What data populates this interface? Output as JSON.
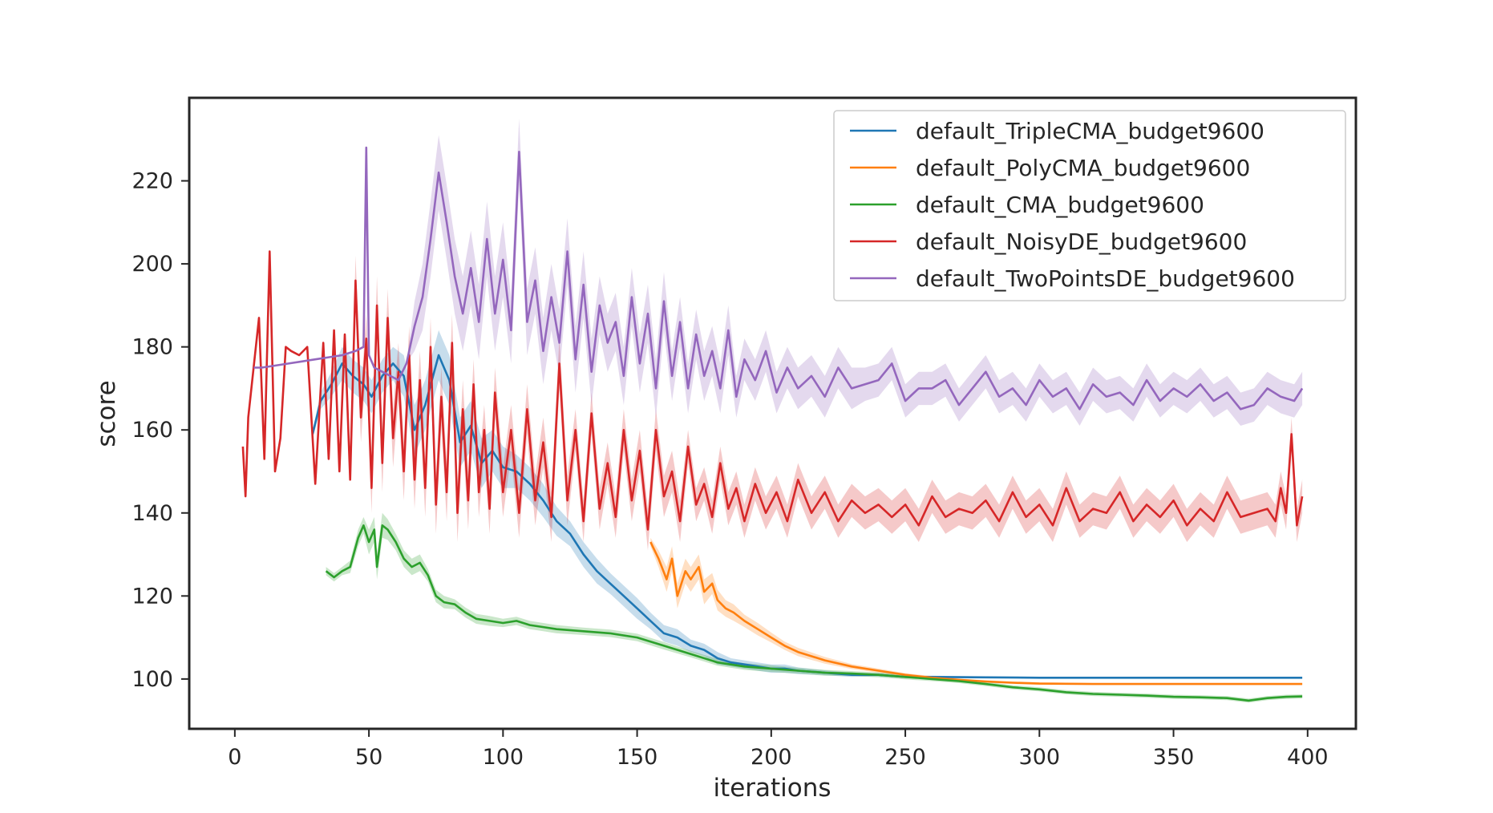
{
  "chart_data": {
    "type": "line",
    "title": "",
    "xlabel": "iterations",
    "ylabel": "score",
    "xlim": [
      -17,
      418
    ],
    "ylim": [
      88,
      240
    ],
    "xticks": [
      0,
      50,
      100,
      150,
      200,
      250,
      300,
      350,
      400
    ],
    "yticks": [
      100,
      120,
      140,
      160,
      180,
      200,
      220
    ],
    "grid": false,
    "legend_position": "top-right",
    "confidence_band": true,
    "series": [
      {
        "name": "default_TripleCMA_budget9600",
        "color": "#1f77b4",
        "x": [
          29,
          32,
          36,
          40,
          44,
          48,
          51,
          55,
          59,
          63,
          67,
          71,
          76,
          80,
          84,
          88,
          92,
          96,
          100,
          105,
          110,
          115,
          120,
          125,
          130,
          135,
          140,
          145,
          150,
          155,
          160,
          165,
          170,
          175,
          180,
          185,
          190,
          195,
          200,
          205,
          210,
          220,
          230,
          240,
          250,
          260,
          280,
          300,
          320,
          340,
          360,
          380,
          398
        ],
        "y": [
          159,
          167,
          171,
          176,
          173,
          171,
          168,
          173,
          176,
          173,
          160,
          166,
          178,
          172,
          157,
          161,
          152,
          155,
          151,
          150,
          147,
          143,
          138,
          135,
          130,
          126,
          123,
          120,
          117,
          114,
          111,
          110,
          108,
          107,
          105,
          104,
          103.5,
          103,
          102.5,
          102.5,
          102,
          101.5,
          101,
          101,
          100.5,
          100.5,
          100.4,
          100.3,
          100.3,
          100.3,
          100.3,
          100.3,
          100.3
        ],
        "band": [
          1,
          2,
          3,
          4,
          4,
          4,
          4,
          4,
          4,
          5,
          6,
          6,
          6,
          6,
          6,
          6,
          6,
          5,
          5,
          4,
          4,
          4,
          3.5,
          3,
          3,
          3,
          2.5,
          2.5,
          2.5,
          2,
          2,
          2,
          1.5,
          1.5,
          1.5,
          1,
          1,
          1,
          1,
          1,
          0.8,
          0.6,
          0.5,
          0.4,
          0.3,
          0.3,
          0.2,
          0.2,
          0.2,
          0.2,
          0.2,
          0.2,
          0.2
        ]
      },
      {
        "name": "default_PolyCMA_budget9600",
        "color": "#ff7f0e",
        "x": [
          155,
          158,
          161,
          163,
          165,
          168,
          170,
          173,
          175,
          178,
          180,
          183,
          186,
          190,
          195,
          200,
          205,
          210,
          220,
          230,
          240,
          250,
          260,
          270,
          280,
          290,
          300,
          320,
          340,
          360,
          380,
          398
        ],
        "y": [
          133,
          129,
          124,
          129,
          120,
          126,
          124,
          127,
          121,
          123,
          119,
          117,
          116,
          114,
          112,
          110,
          108,
          106.5,
          104.5,
          103,
          102,
          101,
          100.3,
          99.8,
          99.4,
          99.1,
          98.9,
          98.8,
          98.8,
          98.8,
          98.8,
          98.8
        ],
        "band": [
          1,
          2,
          3,
          3,
          3,
          3,
          3,
          3,
          3,
          2.5,
          2.5,
          2,
          2,
          1.5,
          1.5,
          1.2,
          1,
          1,
          0.8,
          0.6,
          0.5,
          0.4,
          0.4,
          0.3,
          0.3,
          0.3,
          0.3,
          0.2,
          0.2,
          0.2,
          0.2,
          0.2
        ]
      },
      {
        "name": "default_CMA_budget9600",
        "color": "#2ca02c",
        "x": [
          34,
          37,
          40,
          43,
          46,
          48,
          50,
          52,
          53,
          55,
          57,
          60,
          63,
          66,
          69,
          72,
          75,
          78,
          82,
          86,
          90,
          95,
          100,
          105,
          110,
          115,
          120,
          130,
          140,
          150,
          160,
          170,
          180,
          190,
          200,
          210,
          220,
          230,
          240,
          250,
          260,
          270,
          280,
          290,
          300,
          310,
          320,
          330,
          340,
          350,
          360,
          370,
          378,
          385,
          392,
          398
        ],
        "y": [
          126,
          124.5,
          126,
          127,
          134,
          137,
          133,
          136,
          127,
          137,
          136,
          133,
          129,
          127,
          128,
          125,
          120,
          118.5,
          118,
          116,
          114.5,
          114,
          113.5,
          114,
          113,
          112.5,
          112,
          111.5,
          111,
          110,
          108,
          106,
          104,
          103,
          102.5,
          102,
          101.5,
          101.3,
          101,
          100.5,
          100,
          99.5,
          98.8,
          98,
          97.5,
          96.8,
          96.4,
          96.2,
          96,
          95.7,
          95.6,
          95.4,
          94.8,
          95.4,
          95.7,
          95.8
        ],
        "band": [
          1,
          1,
          1,
          1.5,
          2,
          2,
          3,
          3,
          3,
          3,
          2.5,
          2,
          2,
          2,
          2,
          1.5,
          1.5,
          1.5,
          1.2,
          1.2,
          1.2,
          1.2,
          1,
          1,
          1,
          1,
          1,
          0.9,
          0.9,
          0.9,
          0.9,
          0.8,
          0.8,
          0.8,
          0.8,
          0.7,
          0.7,
          0.6,
          0.6,
          0.6,
          0.5,
          0.5,
          0.5,
          0.5,
          0.5,
          0.5,
          0.5,
          0.5,
          0.5,
          0.5,
          0.5,
          0.5,
          0.5,
          0.5,
          0.5,
          0.5
        ]
      },
      {
        "name": "default_NoisyDE_budget9600",
        "color": "#d62728",
        "x": [
          3,
          4,
          5,
          7,
          9,
          11,
          13,
          15,
          17,
          19,
          21,
          24,
          27,
          30,
          33,
          35,
          37,
          39,
          41,
          43,
          45,
          47,
          49,
          51,
          53,
          55,
          57,
          59,
          61,
          63,
          65,
          67,
          69,
          71,
          73,
          75,
          77,
          79,
          81,
          83,
          85,
          87,
          89,
          91,
          93,
          95,
          97,
          100,
          103,
          106,
          109,
          112,
          115,
          118,
          121,
          124,
          127,
          130,
          133,
          136,
          139,
          142,
          145,
          148,
          151,
          154,
          157,
          160,
          163,
          166,
          169,
          172,
          175,
          178,
          181,
          184,
          187,
          190,
          194,
          198,
          202,
          206,
          210,
          215,
          220,
          225,
          230,
          235,
          240,
          245,
          250,
          255,
          260,
          265,
          270,
          275,
          280,
          285,
          290,
          295,
          300,
          305,
          310,
          315,
          320,
          325,
          330,
          335,
          340,
          345,
          350,
          355,
          360,
          365,
          370,
          375,
          380,
          385,
          388,
          390,
          392,
          394,
          396,
          398
        ],
        "y": [
          156,
          144,
          163,
          175,
          187,
          153,
          203,
          150,
          158,
          180,
          179,
          178,
          180,
          147,
          181,
          153,
          184,
          150,
          183,
          148,
          196,
          163,
          182,
          146,
          190,
          152,
          187,
          158,
          174,
          150,
          178,
          148,
          172,
          146,
          180,
          142,
          168,
          145,
          181,
          140,
          165,
          143,
          171,
          145,
          160,
          141,
          169,
          145,
          160,
          140,
          165,
          143,
          157,
          139,
          176,
          143,
          160,
          138,
          164,
          141,
          152,
          139,
          160,
          143,
          155,
          136,
          160,
          144,
          150,
          138,
          156,
          142,
          147,
          139,
          152,
          141,
          146,
          138,
          147,
          140,
          145,
          138,
          148,
          140,
          145,
          138,
          143,
          140,
          142,
          139,
          142,
          137,
          144,
          139,
          141,
          140,
          143,
          138,
          145,
          139,
          142,
          137,
          146,
          138,
          141,
          140,
          145,
          138,
          142,
          139,
          143,
          137,
          141,
          138,
          145,
          139,
          140,
          141,
          138,
          146,
          140,
          159,
          137,
          144
        ],
        "band": [
          0,
          0,
          0,
          0,
          0,
          0,
          0,
          0,
          0,
          0,
          0,
          0,
          0,
          0,
          0,
          0,
          0,
          0,
          0,
          0,
          6,
          6,
          6,
          6,
          7,
          7,
          7,
          7,
          7,
          7,
          7,
          7,
          7,
          7,
          7,
          7,
          7,
          7,
          7,
          7,
          7,
          7,
          6,
          6,
          6,
          6,
          6,
          6,
          6,
          6,
          6,
          6,
          6,
          6,
          6,
          6,
          5,
          5,
          5,
          5,
          5,
          5,
          5,
          5,
          5,
          5,
          5,
          5,
          5,
          5,
          4,
          4,
          4,
          4,
          4,
          4,
          4,
          4,
          4,
          4,
          4,
          4,
          4,
          4,
          4,
          4,
          4,
          4,
          4,
          4,
          4,
          4,
          4,
          4,
          4,
          4,
          4,
          4,
          4,
          4,
          4,
          4,
          4,
          4,
          4,
          4,
          4,
          4,
          4,
          4,
          4,
          4,
          4,
          4,
          4,
          4,
          4,
          4,
          4,
          4,
          4,
          4,
          4,
          4
        ]
      },
      {
        "name": "default_TwoPointsDE_budget9600",
        "color": "#9467bd",
        "x": [
          7,
          10,
          15,
          20,
          25,
          30,
          35,
          40,
          45,
          48,
          49,
          50,
          52,
          55,
          58,
          61,
          64,
          67,
          70,
          73,
          76,
          79,
          82,
          85,
          88,
          91,
          94,
          97,
          100,
          103,
          106,
          109,
          112,
          115,
          118,
          121,
          124,
          127,
          130,
          133,
          136,
          139,
          142,
          145,
          148,
          151,
          154,
          157,
          160,
          163,
          166,
          169,
          172,
          175,
          178,
          181,
          184,
          187,
          190,
          194,
          198,
          202,
          206,
          210,
          215,
          220,
          225,
          230,
          235,
          240,
          245,
          250,
          255,
          260,
          265,
          270,
          275,
          280,
          285,
          290,
          295,
          300,
          305,
          310,
          315,
          320,
          325,
          330,
          335,
          340,
          345,
          350,
          355,
          360,
          365,
          370,
          375,
          380,
          385,
          390,
          395,
          398
        ],
        "y": [
          175,
          175,
          175.5,
          176,
          176.5,
          177,
          177.5,
          178,
          179,
          180,
          228,
          178,
          175,
          174,
          173,
          172,
          176,
          185,
          192,
          206,
          222,
          210,
          197,
          188,
          199,
          186,
          206,
          188,
          201,
          184,
          227,
          186,
          196,
          179,
          192,
          181,
          203,
          177,
          195,
          174,
          190,
          181,
          186,
          173,
          192,
          176,
          188,
          170,
          191,
          173,
          186,
          170,
          183,
          173,
          179,
          170,
          184,
          168,
          177,
          172,
          179,
          169,
          175,
          170,
          173,
          168,
          175,
          170,
          171,
          172,
          176,
          167,
          170,
          170,
          172,
          166,
          170,
          174,
          168,
          170,
          166,
          172,
          168,
          170,
          165,
          171,
          168,
          169,
          166,
          172,
          167,
          170,
          168,
          171,
          167,
          169,
          165,
          166,
          170,
          168,
          167,
          170
        ],
        "band": [
          0,
          0,
          0,
          0,
          0,
          0,
          0,
          0,
          0,
          0,
          0,
          0,
          0,
          0,
          0,
          0,
          0,
          6,
          8,
          9,
          9,
          9,
          9,
          9,
          9,
          9,
          9,
          9,
          9,
          8,
          8,
          8,
          8,
          8,
          8,
          8,
          8,
          8,
          8,
          8,
          7,
          7,
          7,
          7,
          7,
          7,
          7,
          7,
          7,
          6,
          6,
          6,
          6,
          6,
          6,
          6,
          6,
          5,
          5,
          5,
          5,
          5,
          5,
          5,
          5,
          5,
          5,
          5,
          4,
          4,
          4,
          4,
          4,
          4,
          4,
          4,
          4,
          4,
          4,
          4,
          4,
          4,
          4,
          4,
          4,
          4,
          4,
          4,
          4,
          4,
          4,
          4,
          4,
          4,
          4,
          4,
          4,
          4,
          4,
          4,
          4,
          4
        ]
      }
    ]
  }
}
